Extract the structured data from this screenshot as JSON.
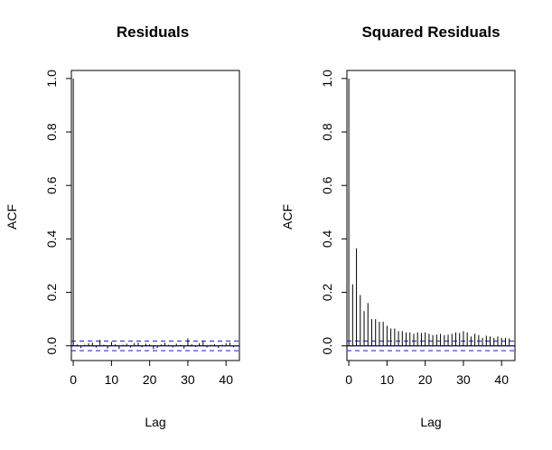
{
  "chart_data": [
    {
      "type": "bar",
      "subtype": "acf-spike",
      "title": "Residuals",
      "xlabel": "Lag",
      "ylabel": "ACF",
      "xlim": [
        -0.5,
        43.5
      ],
      "ylim": [
        -0.055,
        1.03
      ],
      "xticks": [
        0,
        10,
        20,
        30,
        40
      ],
      "xtick_labels": [
        "0",
        "10",
        "20",
        "30",
        "40"
      ],
      "yticks": [
        0.0,
        0.2,
        0.4,
        0.6,
        0.8,
        1.0
      ],
      "ytick_labels": [
        "0.0",
        "0.2",
        "0.4",
        "0.6",
        "0.8",
        "1.0"
      ],
      "confidence_band": 0.018,
      "zero_line_color": "#000080",
      "band_color": "#3333cc",
      "x": [
        0,
        1,
        2,
        3,
        4,
        5,
        6,
        7,
        8,
        9,
        10,
        11,
        12,
        13,
        14,
        15,
        16,
        17,
        18,
        19,
        20,
        21,
        22,
        23,
        24,
        25,
        26,
        27,
        28,
        29,
        30,
        31,
        32,
        33,
        34,
        35,
        36,
        37,
        38,
        39,
        40,
        41,
        42
      ],
      "values": [
        1.0,
        0.005,
        -0.008,
        0.004,
        0.01,
        0.012,
        -0.006,
        0.022,
        0.004,
        -0.01,
        0.015,
        0.006,
        -0.012,
        0.004,
        0.008,
        -0.006,
        0.01,
        0.012,
        -0.005,
        0.008,
        0.006,
        -0.012,
        -0.008,
        0.005,
        0.012,
        0.004,
        -0.006,
        0.008,
        0.003,
        -0.01,
        0.028,
        0.006,
        -0.004,
        0.01,
        0.018,
        -0.006,
        0.004,
        0.006,
        -0.008,
        0.004,
        0.01,
        0.012,
        -0.005
      ]
    },
    {
      "type": "bar",
      "subtype": "acf-spike",
      "title": "Squared Residuals",
      "xlabel": "Lag",
      "ylabel": "ACF",
      "xlim": [
        -0.5,
        43.5
      ],
      "ylim": [
        -0.055,
        1.03
      ],
      "xticks": [
        0,
        10,
        20,
        30,
        40
      ],
      "xtick_labels": [
        "0",
        "10",
        "20",
        "30",
        "40"
      ],
      "yticks": [
        0.0,
        0.2,
        0.4,
        0.6,
        0.8,
        1.0
      ],
      "ytick_labels": [
        "0.0",
        "0.2",
        "0.4",
        "0.6",
        "0.8",
        "1.0"
      ],
      "confidence_band": 0.018,
      "zero_line_color": "#000080",
      "band_color": "#3333cc",
      "x": [
        0,
        1,
        2,
        3,
        4,
        5,
        6,
        7,
        8,
        9,
        10,
        11,
        12,
        13,
        14,
        15,
        16,
        17,
        18,
        19,
        20,
        21,
        22,
        23,
        24,
        25,
        26,
        27,
        28,
        29,
        30,
        31,
        32,
        33,
        34,
        35,
        36,
        37,
        38,
        39,
        40,
        41,
        42
      ],
      "values": [
        1.0,
        0.23,
        0.365,
        0.19,
        0.13,
        0.16,
        0.1,
        0.1,
        0.09,
        0.09,
        0.075,
        0.065,
        0.065,
        0.055,
        0.055,
        0.05,
        0.05,
        0.045,
        0.05,
        0.048,
        0.05,
        0.045,
        0.04,
        0.042,
        0.045,
        0.04,
        0.042,
        0.045,
        0.05,
        0.048,
        0.055,
        0.05,
        0.035,
        0.045,
        0.04,
        0.03,
        0.038,
        0.035,
        0.03,
        0.035,
        0.03,
        0.03,
        0.028
      ]
    }
  ]
}
